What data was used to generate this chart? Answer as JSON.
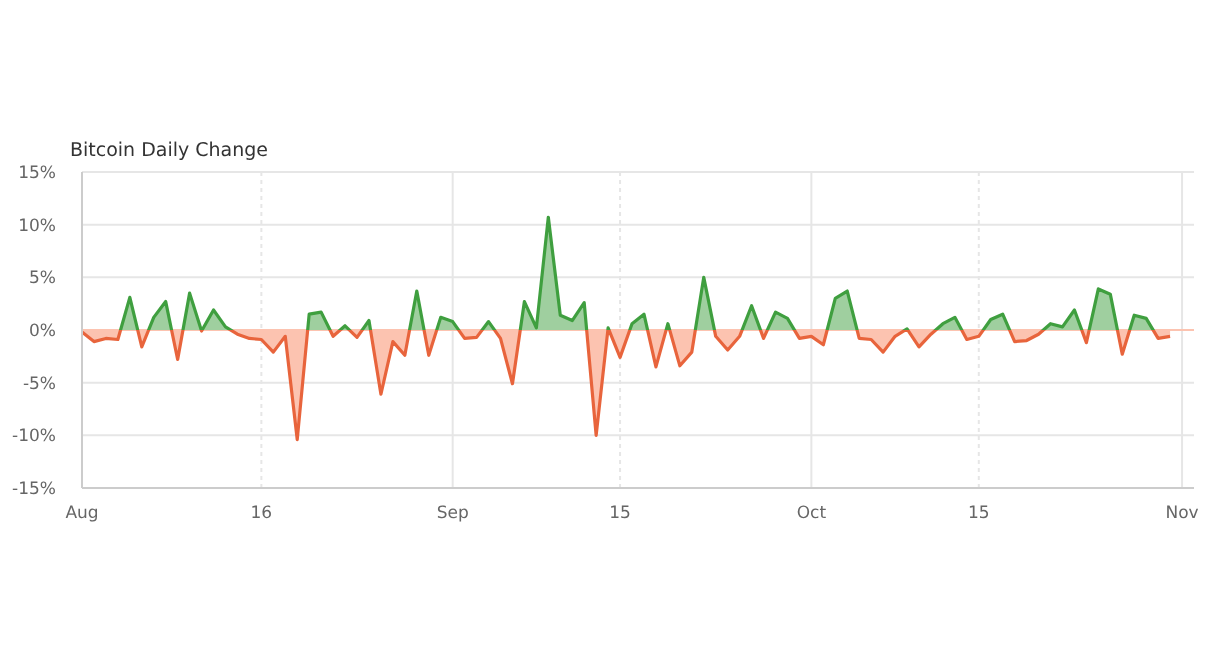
{
  "chart_data": {
    "type": "area",
    "title": "Bitcoin Daily Change",
    "x": [
      "--08-01",
      "--08-02",
      "--08-03",
      "--08-04",
      "--08-05",
      "--08-06",
      "--08-07",
      "--08-08",
      "--08-09",
      "--08-10",
      "--08-11",
      "--08-12",
      "--08-13",
      "--08-14",
      "--08-15",
      "--08-16",
      "--08-17",
      "--08-18",
      "--08-19",
      "--08-20",
      "--08-21",
      "--08-22",
      "--08-23",
      "--08-24",
      "--08-25",
      "--08-26",
      "--08-27",
      "--08-28",
      "--08-29",
      "--08-30",
      "--08-31",
      "--09-01",
      "--09-02",
      "--09-03",
      "--09-04",
      "--09-05",
      "--09-06",
      "--09-07",
      "--09-08",
      "--09-09",
      "--09-10",
      "--09-11",
      "--09-12",
      "--09-13",
      "--09-14",
      "--09-15",
      "--09-16",
      "--09-17",
      "--09-18",
      "--09-19",
      "--09-20",
      "--09-21",
      "--09-22",
      "--09-23",
      "--09-24",
      "--09-25",
      "--09-26",
      "--09-27",
      "--09-28",
      "--09-29",
      "--09-30",
      "--10-01",
      "--10-02",
      "--10-03",
      "--10-04",
      "--10-05",
      "--10-06",
      "--10-07",
      "--10-08",
      "--10-09",
      "--10-10",
      "--10-11",
      "--10-12",
      "--10-13",
      "--10-14",
      "--10-15",
      "--10-16",
      "--10-17",
      "--10-18",
      "--10-19",
      "--10-20",
      "--10-21",
      "--10-22",
      "--10-23",
      "--10-24",
      "--10-25",
      "--10-26",
      "--10-27",
      "--10-28",
      "--10-29",
      "--10-30",
      "--10-31"
    ],
    "series": [
      {
        "color": "#3f9f3f",
        "values": [
          -0.2,
          -1.1,
          -0.8,
          -0.9,
          3.1,
          -1.6,
          1.2,
          2.7,
          -2.8,
          3.5,
          -0.1,
          1.9,
          0.3,
          -0.4,
          -0.8,
          -0.9,
          -2.1,
          -0.6,
          -10.4,
          1.5,
          1.7,
          -0.6,
          0.4,
          -0.7,
          0.9,
          -6.1,
          -1.1,
          -2.4,
          3.7,
          -2.4,
          1.2,
          0.8,
          -0.8,
          -0.7,
          0.8,
          -0.8,
          -5.1,
          2.7,
          0.2,
          10.7,
          1.4,
          0.9,
          2.6,
          -10.0,
          0.2,
          -2.6,
          0.6,
          1.5,
          -3.5,
          0.6,
          -3.4,
          -2.1,
          5.0,
          -0.6,
          -1.9,
          -0.6,
          2.3,
          -0.8,
          1.7,
          1.1,
          -0.8,
          -0.6,
          -1.4,
          3.0,
          3.7,
          -0.8,
          -0.9,
          -2.1,
          -0.6,
          0.1,
          -1.6,
          -0.4,
          0.6,
          1.2,
          -0.9,
          -0.6,
          1.0,
          1.5,
          -1.1,
          -1.0,
          -0.4,
          0.6,
          0.3,
          1.9,
          -1.2,
          3.9,
          3.4,
          -2.3,
          1.4,
          1.1,
          -0.8,
          -0.6
        ]
      }
    ],
    "xlim": [
      "--08-01",
      "--11-02"
    ],
    "xticks": [
      {
        "value": "--08-01",
        "label": "Aug"
      },
      {
        "value": "--08-16",
        "label": "16"
      },
      {
        "value": "--09-01",
        "label": "Sep"
      },
      {
        "value": "--09-15",
        "label": "15"
      },
      {
        "value": "--10-01",
        "label": "Oct"
      },
      {
        "value": "--10-15",
        "label": "15"
      },
      {
        "value": "--11-01",
        "label": "Nov"
      }
    ],
    "ylim": [
      -15,
      15
    ],
    "yticks": [
      {
        "value": -15,
        "label": "-15%"
      },
      {
        "value": -10,
        "label": "-10%"
      },
      {
        "value": -5,
        "label": "-5%"
      },
      {
        "value": 0,
        "label": "0%"
      },
      {
        "value": 5,
        "label": "5%"
      },
      {
        "value": 10,
        "label": "10%"
      },
      {
        "value": 15,
        "label": "15%"
      }
    ],
    "grid": true,
    "ref_lines": [
      {
        "axis": "y",
        "value": 0,
        "color": "#fcc3b0"
      }
    ]
  }
}
